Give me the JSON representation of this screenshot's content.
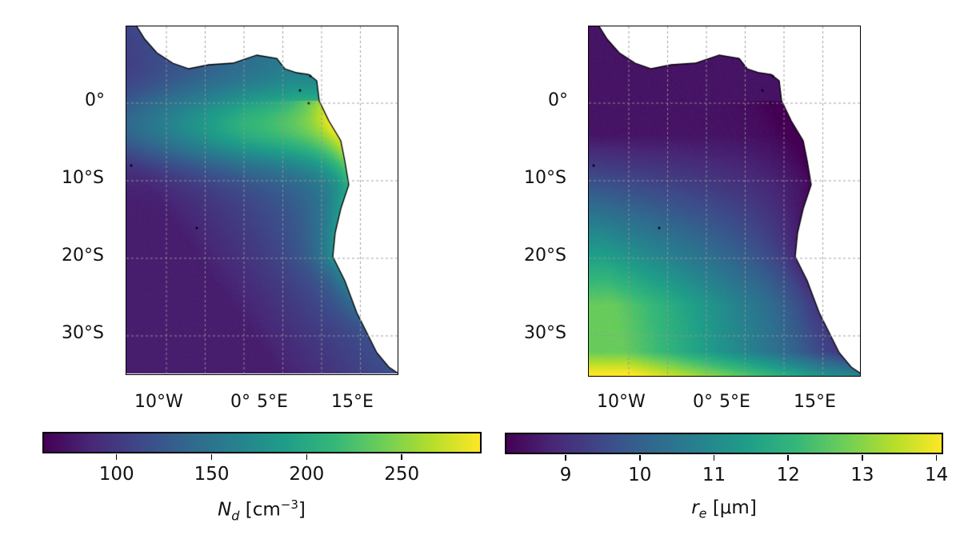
{
  "panels": [
    {
      "variable": "Nd",
      "y_ticks": [
        "0°",
        "10°S",
        "20°S",
        "30°S"
      ],
      "x_ticks": [
        "10°W",
        "0°",
        "5°E",
        "15°E"
      ],
      "colormap": "viridis",
      "colorbar": {
        "range": [
          61,
          292
        ],
        "ticks": [
          "100",
          "150",
          "200",
          "250"
        ],
        "label": {
          "symbol": "N",
          "sub": "d",
          "unit_open": " [cm",
          "sup": "−3",
          "unit_close": "]"
        }
      }
    },
    {
      "variable": "re",
      "y_ticks": [
        "0°",
        "10°S",
        "20°S",
        "30°S"
      ],
      "x_ticks": [
        "10°W",
        "0°",
        "5°E",
        "15°E"
      ],
      "colormap": "viridis",
      "colorbar": {
        "range": [
          8.18,
          14.09
        ],
        "ticks": [
          "9",
          "10",
          "11",
          "12",
          "13",
          "14"
        ],
        "label": {
          "symbol": "r",
          "sub": "e",
          "unit_open": " [μm]",
          "sup": "",
          "unit_close": ""
        }
      }
    }
  ],
  "map_extent": {
    "lon": [
      -15.2,
      19.8
    ],
    "lat": [
      -35,
      9.9
    ]
  },
  "gridlines": {
    "lon": [
      -10,
      -5,
      0,
      5,
      10,
      15
    ],
    "lat": [
      0,
      -10,
      -20,
      -30
    ],
    "style": "dashed",
    "color": "#999999"
  }
}
